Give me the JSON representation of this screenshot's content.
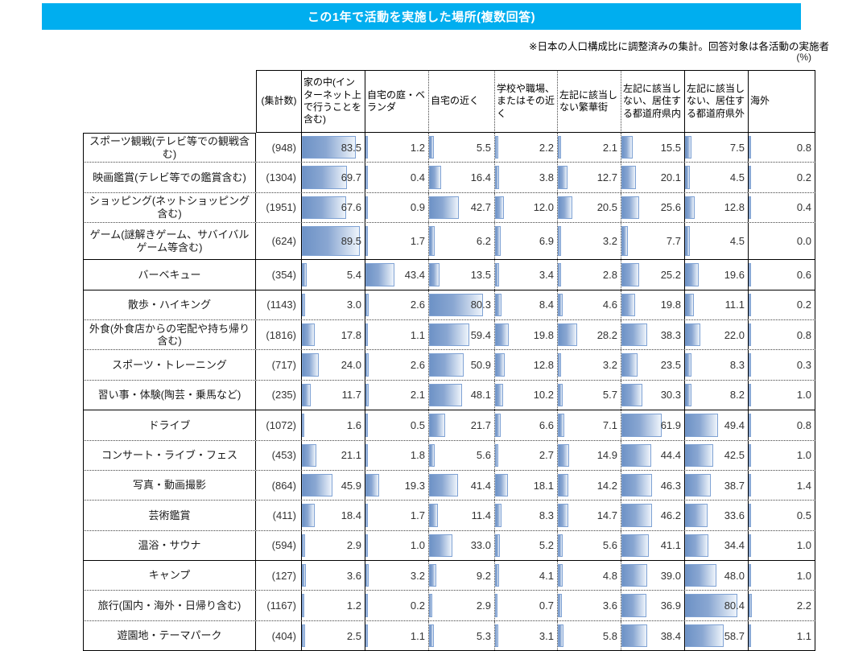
{
  "page": {
    "title": "この1年で活動を実施した場所(複数回答)",
    "note": "※日本の人口構成比に調整済みの集計。回答対象は各活動の実施者",
    "unit_label": "(%)"
  },
  "colors": {
    "title_bg": "#00AEEF",
    "title_text": "#FFFFFF",
    "bar_fill_start": "#6D92C6",
    "bar_fill_mid": "#8AA7D2",
    "bar_fill_end": "#EEF4FB",
    "bar_border": "#7FA2D4"
  },
  "chart_data": {
    "type": "table",
    "title": "この1年で活動を実施した場所(複数回答)",
    "unit": "%",
    "bar_scale": [
      0,
      100
    ],
    "count_header": "(集計数)",
    "place_headers": [
      "家の中(インターネット上で行うことを含む)",
      "自宅の庭・ベランダ",
      "自宅の近く",
      "学校や職場、またはその近く",
      "左記に該当しない繁華街",
      "左記に該当しない、居住する都道府県内",
      "左記に該当しない、居住する都道府県外",
      "海外"
    ],
    "rows": [
      {
        "label": "スポーツ観戦(テレビ等での観戦含む)",
        "count": "(948)",
        "values": [
          83.5,
          1.2,
          5.5,
          2.2,
          2.1,
          15.5,
          7.5,
          0.8
        ]
      },
      {
        "label": "映画鑑賞(テレビ等での鑑賞含む)",
        "count": "(1304)",
        "values": [
          69.7,
          0.4,
          16.4,
          3.8,
          12.7,
          20.1,
          4.5,
          0.2
        ]
      },
      {
        "label": "ショッピング(ネットショッピング含む)",
        "count": "(1951)",
        "values": [
          67.6,
          0.9,
          42.7,
          12.0,
          20.5,
          25.6,
          12.8,
          0.4
        ]
      },
      {
        "label": "ゲーム(謎解きゲーム、サバイバルゲーム等含む)",
        "count": "(624)",
        "values": [
          89.5,
          1.7,
          6.2,
          6.9,
          3.2,
          7.7,
          4.5,
          0.0
        ]
      },
      {
        "label": "バーベキュー",
        "count": "(354)",
        "values": [
          5.4,
          43.4,
          13.5,
          3.4,
          2.8,
          25.2,
          19.6,
          0.6
        ]
      },
      {
        "label": "散歩・ハイキング",
        "count": "(1143)",
        "values": [
          3.0,
          2.6,
          80.3,
          8.4,
          4.6,
          19.8,
          11.1,
          0.2
        ]
      },
      {
        "label": "外食(外食店からの宅配や持ち帰り含む)",
        "count": "(1816)",
        "values": [
          17.8,
          1.1,
          59.4,
          19.8,
          28.2,
          38.3,
          22.0,
          0.8
        ]
      },
      {
        "label": "スポーツ・トレーニング",
        "count": "(717)",
        "values": [
          24.0,
          2.6,
          50.9,
          12.8,
          3.2,
          23.5,
          8.3,
          0.3
        ]
      },
      {
        "label": "習い事・体験(陶芸・乗馬など)",
        "count": "(235)",
        "values": [
          11.7,
          2.1,
          48.1,
          10.2,
          5.7,
          30.3,
          8.2,
          1.0
        ]
      },
      {
        "label": "ドライブ",
        "count": "(1072)",
        "values": [
          1.6,
          0.5,
          21.7,
          6.6,
          7.1,
          61.9,
          49.4,
          0.8
        ]
      },
      {
        "label": "コンサート・ライブ・フェス",
        "count": "(453)",
        "values": [
          21.1,
          1.8,
          5.6,
          2.7,
          14.9,
          44.4,
          42.5,
          1.0
        ]
      },
      {
        "label": "写真・動画撮影",
        "count": "(864)",
        "values": [
          45.9,
          19.3,
          41.4,
          18.1,
          14.2,
          46.3,
          38.7,
          1.4
        ]
      },
      {
        "label": "芸術鑑賞",
        "count": "(411)",
        "values": [
          18.4,
          1.7,
          11.4,
          8.3,
          14.7,
          46.2,
          33.6,
          0.5
        ]
      },
      {
        "label": "温浴・サウナ",
        "count": "(594)",
        "values": [
          2.9,
          1.0,
          33.0,
          5.2,
          5.6,
          41.1,
          34.4,
          1.0
        ]
      },
      {
        "label": "キャンプ",
        "count": "(127)",
        "values": [
          3.6,
          3.2,
          9.2,
          4.1,
          4.8,
          39.0,
          48.0,
          1.0
        ]
      },
      {
        "label": "旅行(国内・海外・日帰り含む)",
        "count": "(1167)",
        "values": [
          1.2,
          0.2,
          2.9,
          0.7,
          3.6,
          36.9,
          80.4,
          2.2
        ]
      },
      {
        "label": "遊園地・テーマパーク",
        "count": "(404)",
        "values": [
          2.5,
          1.1,
          5.3,
          3.1,
          5.8,
          38.4,
          58.7,
          1.1
        ]
      }
    ]
  }
}
